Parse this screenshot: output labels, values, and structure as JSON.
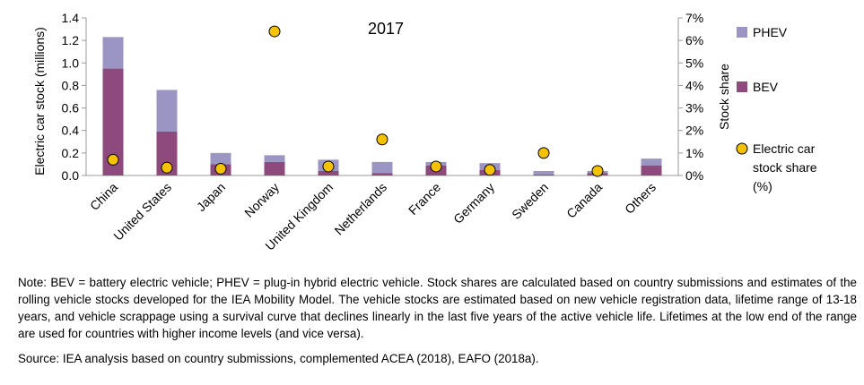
{
  "chart_data": {
    "type": "bar",
    "title": "2017",
    "categories": [
      "China",
      "United States",
      "Japan",
      "Norway",
      "United Kingdom",
      "Netherlands",
      "France",
      "Germany",
      "Sweden",
      "Canada",
      "Others"
    ],
    "series": [
      {
        "name": "BEV",
        "kind": "stacked-bar",
        "axis": "left",
        "color": "#8e4a7c",
        "values": [
          0.95,
          0.39,
          0.1,
          0.12,
          0.04,
          0.02,
          0.09,
          0.05,
          0.01,
          0.02,
          0.09
        ]
      },
      {
        "name": "PHEV",
        "kind": "stacked-bar",
        "axis": "left",
        "color": "#9b95c4",
        "values": [
          0.28,
          0.37,
          0.1,
          0.06,
          0.1,
          0.1,
          0.03,
          0.06,
          0.03,
          0.02,
          0.06
        ]
      },
      {
        "name": "Electric car stock share (%)",
        "kind": "marker",
        "axis": "right",
        "color": "#f5c200",
        "values": [
          0.7,
          0.35,
          0.3,
          6.4,
          0.4,
          1.6,
          0.4,
          0.25,
          1.0,
          0.2,
          null
        ]
      }
    ],
    "ylabel": "Electric car stock (millions)",
    "ylim": [
      0,
      1.4
    ],
    "yticks": [
      "0.0",
      "0.2",
      "0.4",
      "0.6",
      "0.8",
      "1.0",
      "1.2",
      "1.4"
    ],
    "y2label": "Stock share",
    "y2lim": [
      0,
      7
    ],
    "y2ticks": [
      "0%",
      "1%",
      "2%",
      "3%",
      "4%",
      "5%",
      "6%",
      "7%"
    ],
    "grid": false,
    "legend": {
      "placement": "right",
      "items": [
        {
          "series": "PHEV",
          "label": "PHEV"
        },
        {
          "series": "BEV",
          "label": "BEV"
        },
        {
          "series": "Electric car stock share (%)",
          "label_lines": [
            "Electric car",
            "stock share",
            "(%)"
          ]
        }
      ]
    }
  },
  "notes": {
    "note": "Note: BEV = battery electric vehicle; PHEV = plug-in hybrid electric vehicle. Stock shares are calculated based on country submissions and estimates of the rolling vehicle stocks developed for the IEA Mobility Model. The vehicle stocks are estimated based on new vehicle registration data, lifetime range of 13-18 years, and vehicle scrappage using a survival curve that declines linearly in the last five years of the active vehicle life. Lifetimes at the low end of the range are used for countries with higher income levels (and vice versa).",
    "source": "Source: IEA analysis based on country submissions, complemented ACEA (2018), EAFO (2018a)."
  }
}
